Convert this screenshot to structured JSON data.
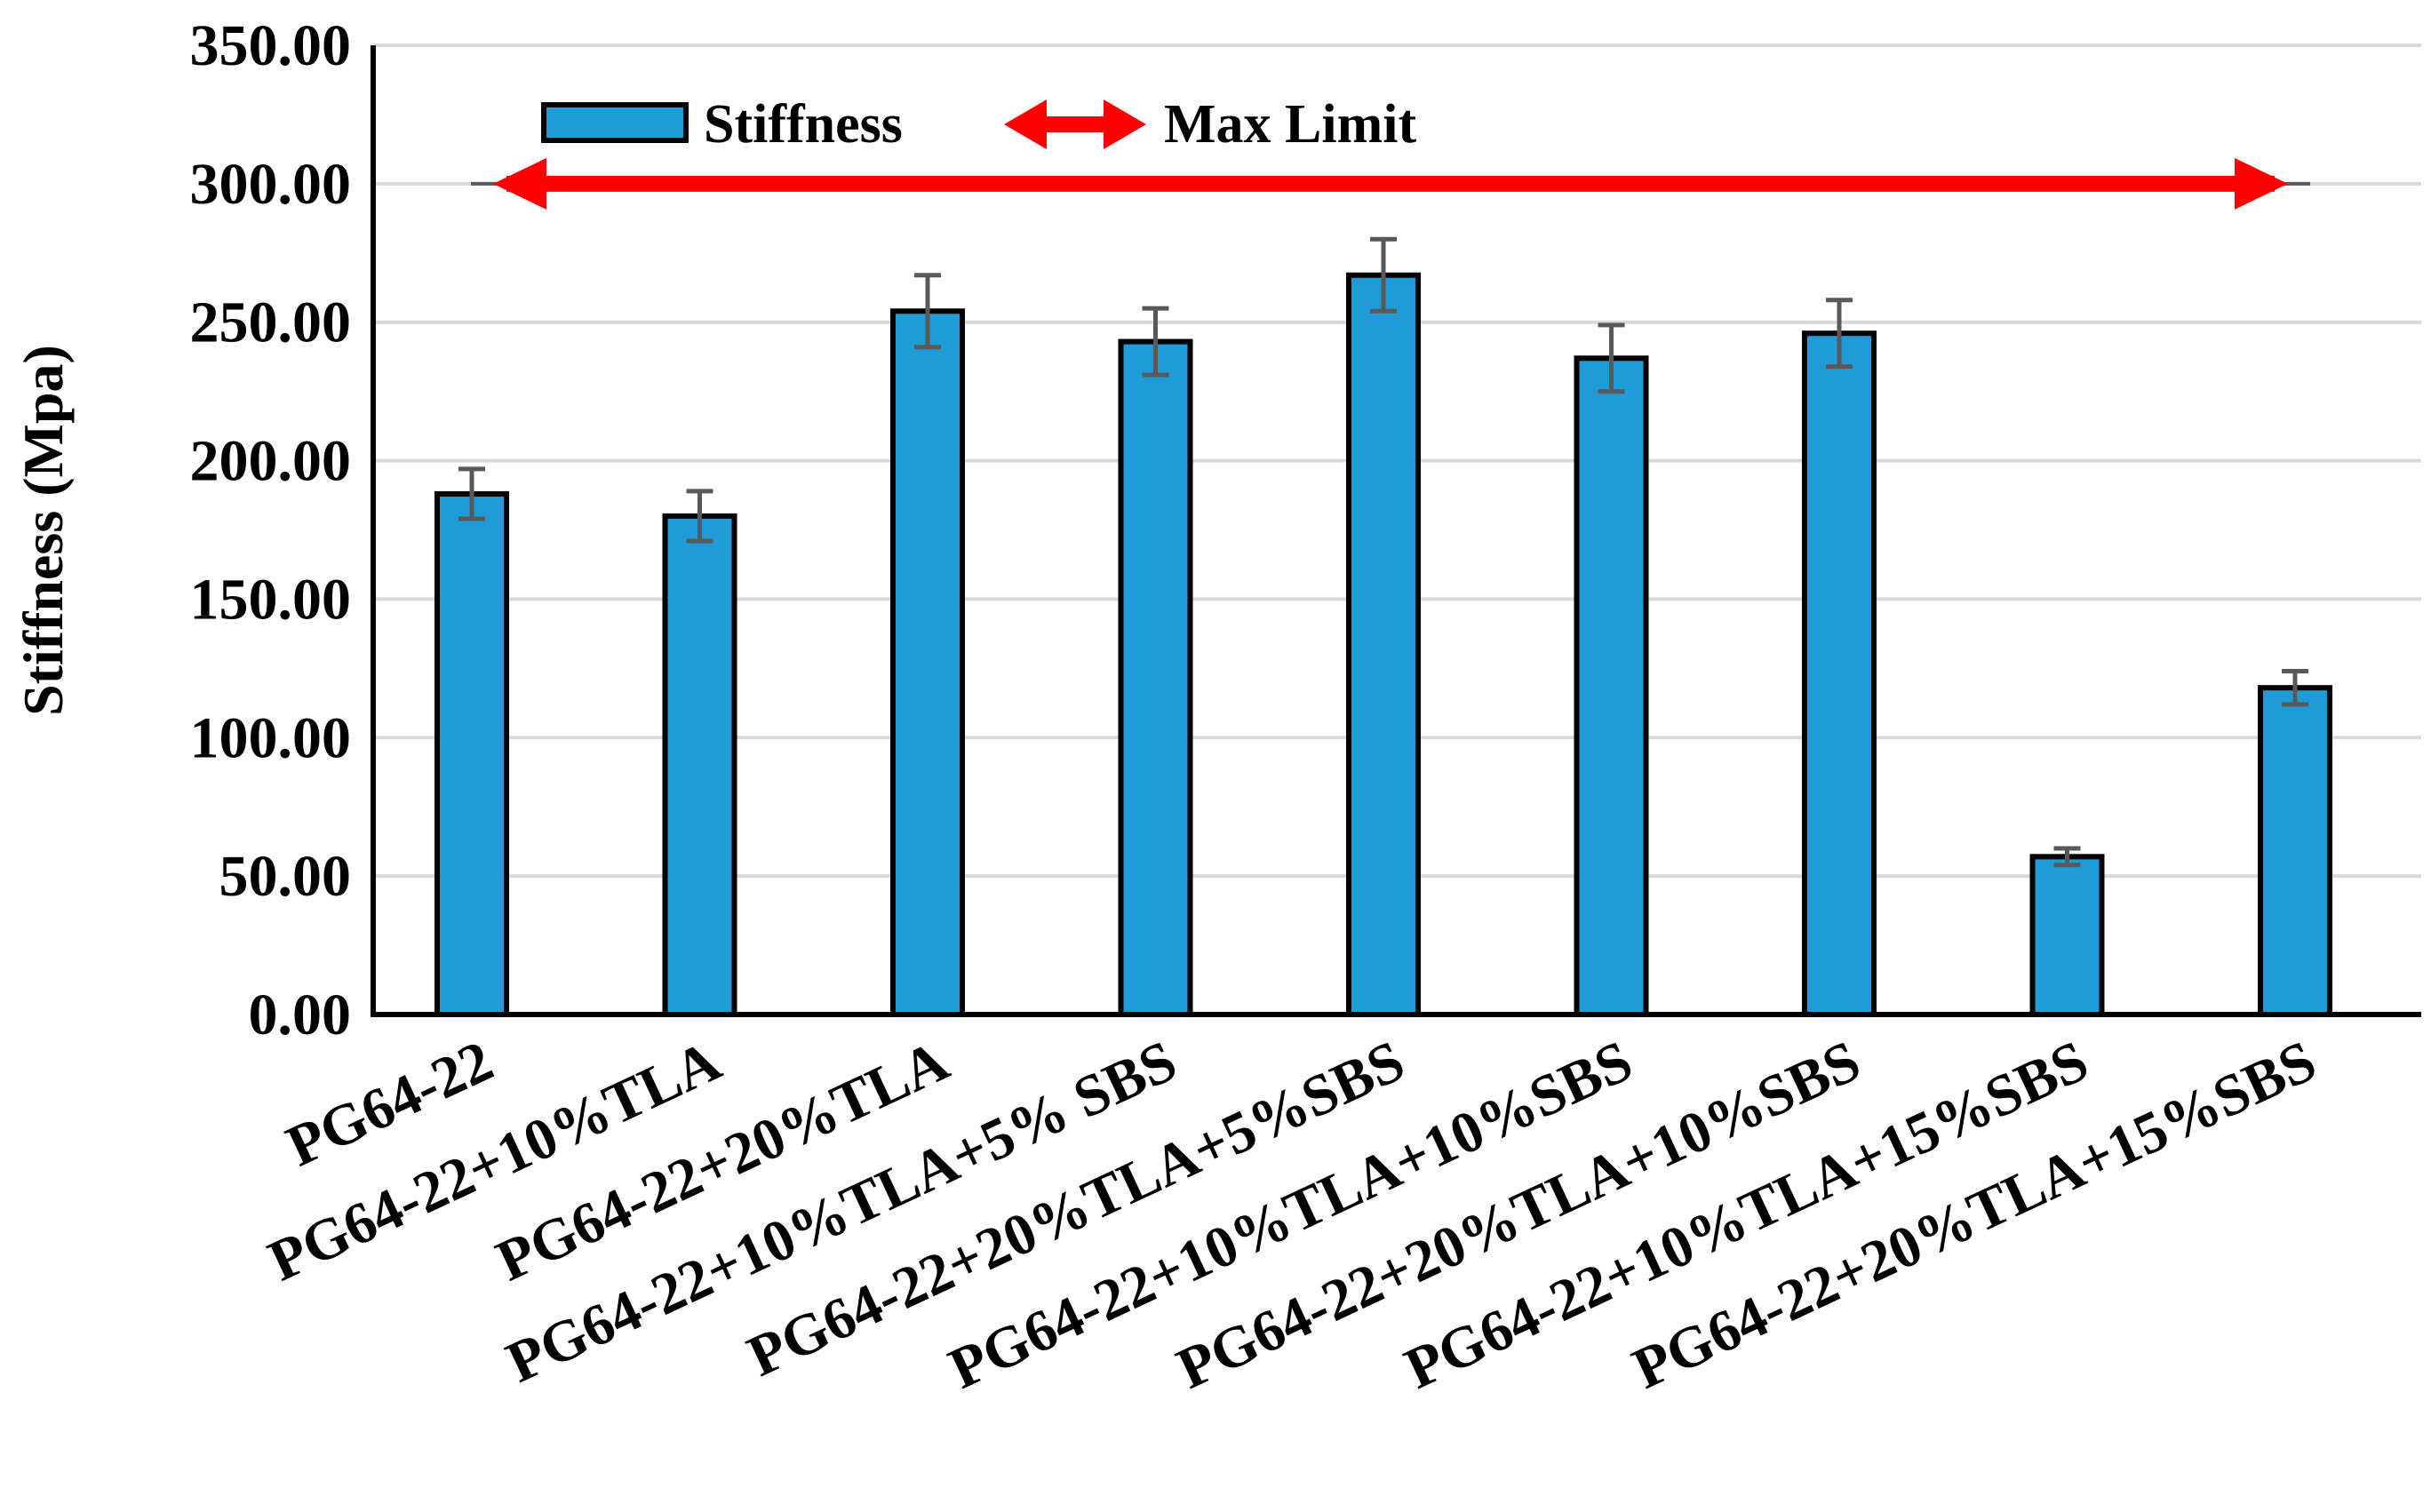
{
  "chart_data": {
    "type": "bar",
    "title": "",
    "xlabel": "",
    "ylabel": "Stiffness (Mpa)",
    "ylim": [
      0,
      350
    ],
    "yticks": [
      "0.00",
      "50.00",
      "100.00",
      "150.00",
      "200.00",
      "250.00",
      "300.00",
      "350.00"
    ],
    "grid": true,
    "legend_position": "top",
    "categories": [
      "PG64-22",
      "PG64-22+10%TLA",
      "PG64-22+20%TLA",
      "PG64-22+10%TLA+5% SBS",
      "PG64-22+20%TLA+5%SBS",
      "PG64-22+10%TLA+10%SBS",
      "PG64-22+20%TLA+10%SBS",
      "PG64-22+10%TLA+15%SBS",
      "PG64-22+20%TLA+15%SBS"
    ],
    "series": [
      {
        "name": "Stiffness",
        "color": "#1f9bd8",
        "values": [
          188,
          180,
          254,
          243,
          267,
          237,
          246,
          57,
          118
        ],
        "error": [
          9,
          9,
          13,
          12,
          13,
          12,
          12,
          3,
          6
        ]
      }
    ],
    "reference_line": {
      "name": "Max Limit",
      "value": 300,
      "color": "#ff0000",
      "style": "double-arrow"
    }
  }
}
